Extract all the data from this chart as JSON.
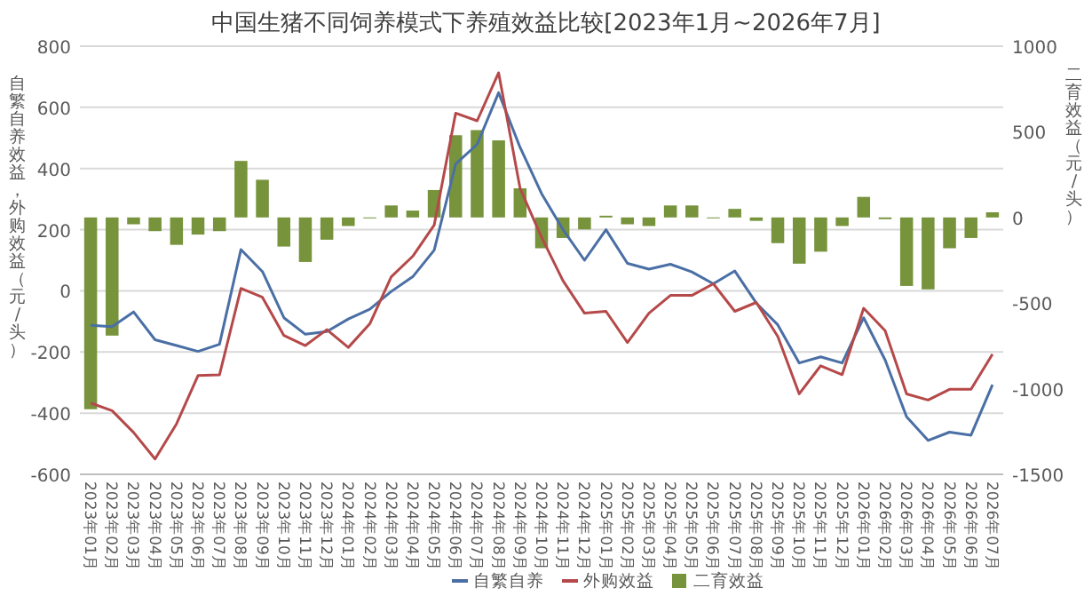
{
  "chart_data": {
    "type": "line",
    "title": "中国生猪不同饲养模式下养殖效益比较[2023年1月~2026年7月]",
    "ylabel": "自繁自养效益，外购效益（元/头）",
    "y2label": "二育效益（元/头）",
    "categories": [
      "2023年01月",
      "2023年02月",
      "2023年03月",
      "2023年04月",
      "2023年05月",
      "2023年06月",
      "2023年07月",
      "2023年08月",
      "2023年09月",
      "2023年10月",
      "2023年11月",
      "2023年12月",
      "2024年01月",
      "2024年02月",
      "2024年03月",
      "2024年04月",
      "2024年05月",
      "2024年06月",
      "2024年07月",
      "2024年08月",
      "2024年09月",
      "2024年10月",
      "2024年11月",
      "2024年12月",
      "2025年01月",
      "2025年02月",
      "2025年03月",
      "2025年04月",
      "2025年05月",
      "2025年06月",
      "2025年07月",
      "2025年08月",
      "2025年09月",
      "2025年10月",
      "2025年11月",
      "2025年12月",
      "2026年01月",
      "2026年02月",
      "2026年03月",
      "2026年04月",
      "2026年05月",
      "2026年06月",
      "2026年07月"
    ],
    "series": [
      {
        "name": "自繁自养",
        "color": "#4a6fa5",
        "values": [
          -113,
          -117,
          -69,
          -160,
          -179,
          -198,
          -175,
          135,
          63,
          -88,
          -142,
          -133,
          -92,
          -60,
          -2,
          46,
          133,
          415,
          479,
          648,
          469,
          318,
          200,
          100,
          200,
          90,
          71,
          87,
          62,
          23,
          65,
          -40,
          -111,
          -236,
          -216,
          -236,
          -88,
          -226,
          -412,
          -489,
          -462,
          -472,
          -307
        ]
      },
      {
        "name": "外购效益",
        "color": "#b5494a",
        "values": [
          -367,
          -392,
          -463,
          -550,
          -435,
          -277,
          -275,
          8,
          -21,
          -146,
          -179,
          -127,
          -185,
          -108,
          46,
          113,
          215,
          581,
          556,
          713,
          335,
          175,
          33,
          -73,
          -67,
          -169,
          -73,
          -15,
          -15,
          23,
          -67,
          -38,
          -149,
          -337,
          -245,
          -274,
          -57,
          -130,
          -337,
          -357,
          -322,
          -322,
          -207
        ]
      },
      {
        "name": "二育效益",
        "type": "bar",
        "axis": "y2",
        "color": "#77933c",
        "values": [
          -1120,
          -690,
          -40,
          -80,
          -160,
          -100,
          -80,
          330,
          220,
          -170,
          -260,
          -130,
          -50,
          0,
          70,
          40,
          160,
          480,
          510,
          450,
          170,
          -180,
          -120,
          -70,
          10,
          -40,
          -50,
          70,
          70,
          0,
          50,
          -20,
          -150,
          -270,
          -200,
          -50,
          120,
          -10,
          -400,
          -420,
          -180,
          -120,
          30
        ]
      }
    ],
    "ylim": [
      -600,
      800
    ],
    "yticks": [
      -600,
      -400,
      -200,
      0,
      200,
      400,
      600,
      800
    ],
    "y2lim": [
      -1500,
      1000
    ],
    "y2ticks": [
      -1500,
      -1000,
      -500,
      0,
      500,
      1000
    ],
    "grid": "y",
    "legend": "bottom"
  }
}
